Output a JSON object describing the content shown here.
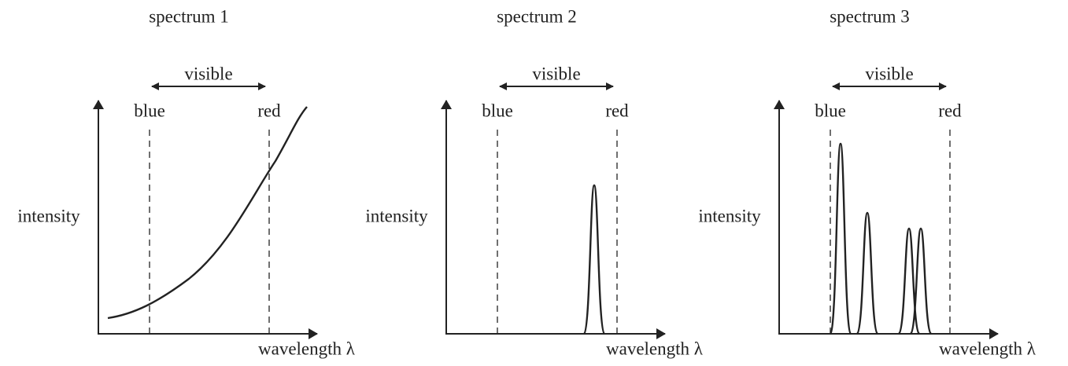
{
  "panels": [
    {
      "title": "spectrum 1",
      "visible": "visible",
      "blue": "blue",
      "red": "red",
      "y_label": "intensity",
      "x_label": "wavelength λ"
    },
    {
      "title": "spectrum 2",
      "visible": "visible",
      "blue": "blue",
      "red": "red",
      "y_label": "intensity",
      "x_label": "wavelength λ"
    },
    {
      "title": "spectrum 3",
      "visible": "visible",
      "blue": "blue",
      "red": "red",
      "y_label": "intensity",
      "x_label": "wavelength λ"
    }
  ]
}
